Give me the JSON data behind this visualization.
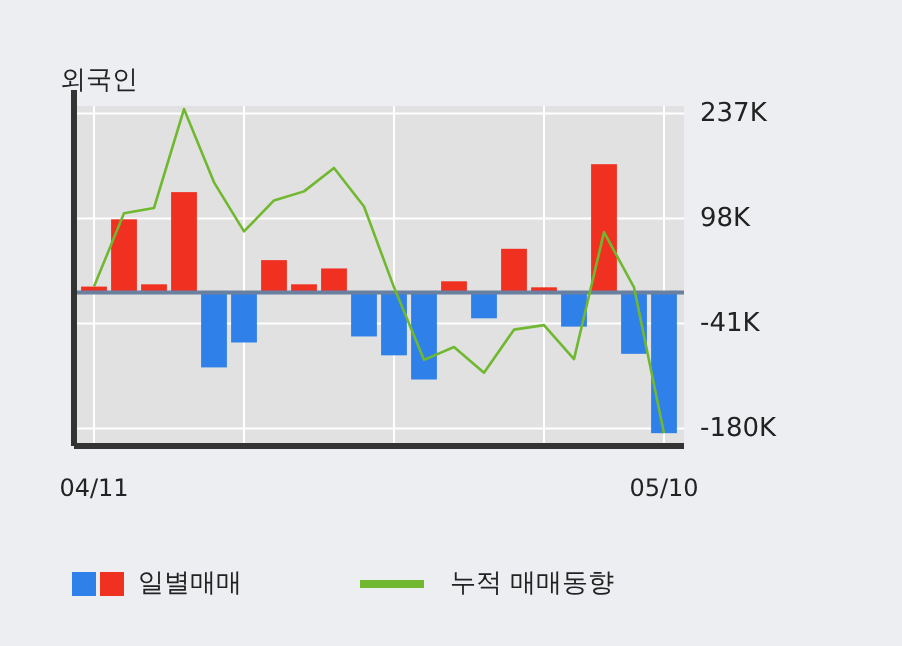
{
  "chart_data": {
    "type": "bar",
    "title": "외국인",
    "categories": [
      "04/11",
      null,
      null,
      null,
      null,
      null,
      null,
      null,
      null,
      null,
      null,
      null,
      null,
      null,
      null,
      null,
      null,
      null,
      null,
      "05/10"
    ],
    "series": [
      {
        "name": "일별매매",
        "colors": [
          "#f03020",
          "#f03020",
          "#f03020",
          "#f03020",
          "#2f80e8",
          "#2f80e8",
          "#f03020",
          "#f03020",
          "#f03020",
          "#2f80e8",
          "#2f80e8",
          "#2f80e8",
          "#f03020",
          "#2f80e8",
          "#f03020",
          "#f03020",
          "#2f80e8",
          "#f03020",
          "#2f80e8",
          "#2f80e8"
        ],
        "values": [
          8000,
          97000,
          11000,
          133000,
          -99000,
          -66000,
          43000,
          11000,
          32000,
          -58000,
          -83000,
          -115000,
          15000,
          -34000,
          58000,
          7000,
          -45000,
          170000,
          -81000,
          -186000
        ]
      },
      {
        "name": "누적 매매동향",
        "type": "line",
        "color": "#70b830",
        "values": [
          8000,
          105000,
          112000,
          243000,
          146000,
          81000,
          122000,
          134000,
          165000,
          114000,
          7000,
          -89000,
          -72000,
          -106000,
          -49000,
          -43000,
          -88000,
          80000,
          7000,
          -186000
        ]
      }
    ],
    "ylim": [
      -203000,
      247000
    ],
    "yticks": [
      {
        "value": -180000,
        "label": "-180K"
      },
      {
        "value": -41000,
        "label": "-41K"
      },
      {
        "value": 98000,
        "label": "98K"
      },
      {
        "value": 237000,
        "label": "237K"
      }
    ],
    "ref_lines": [
      {
        "axis": "y",
        "value": 0,
        "color": "#6a80a0"
      }
    ],
    "grid": true,
    "legend": "bottom"
  }
}
